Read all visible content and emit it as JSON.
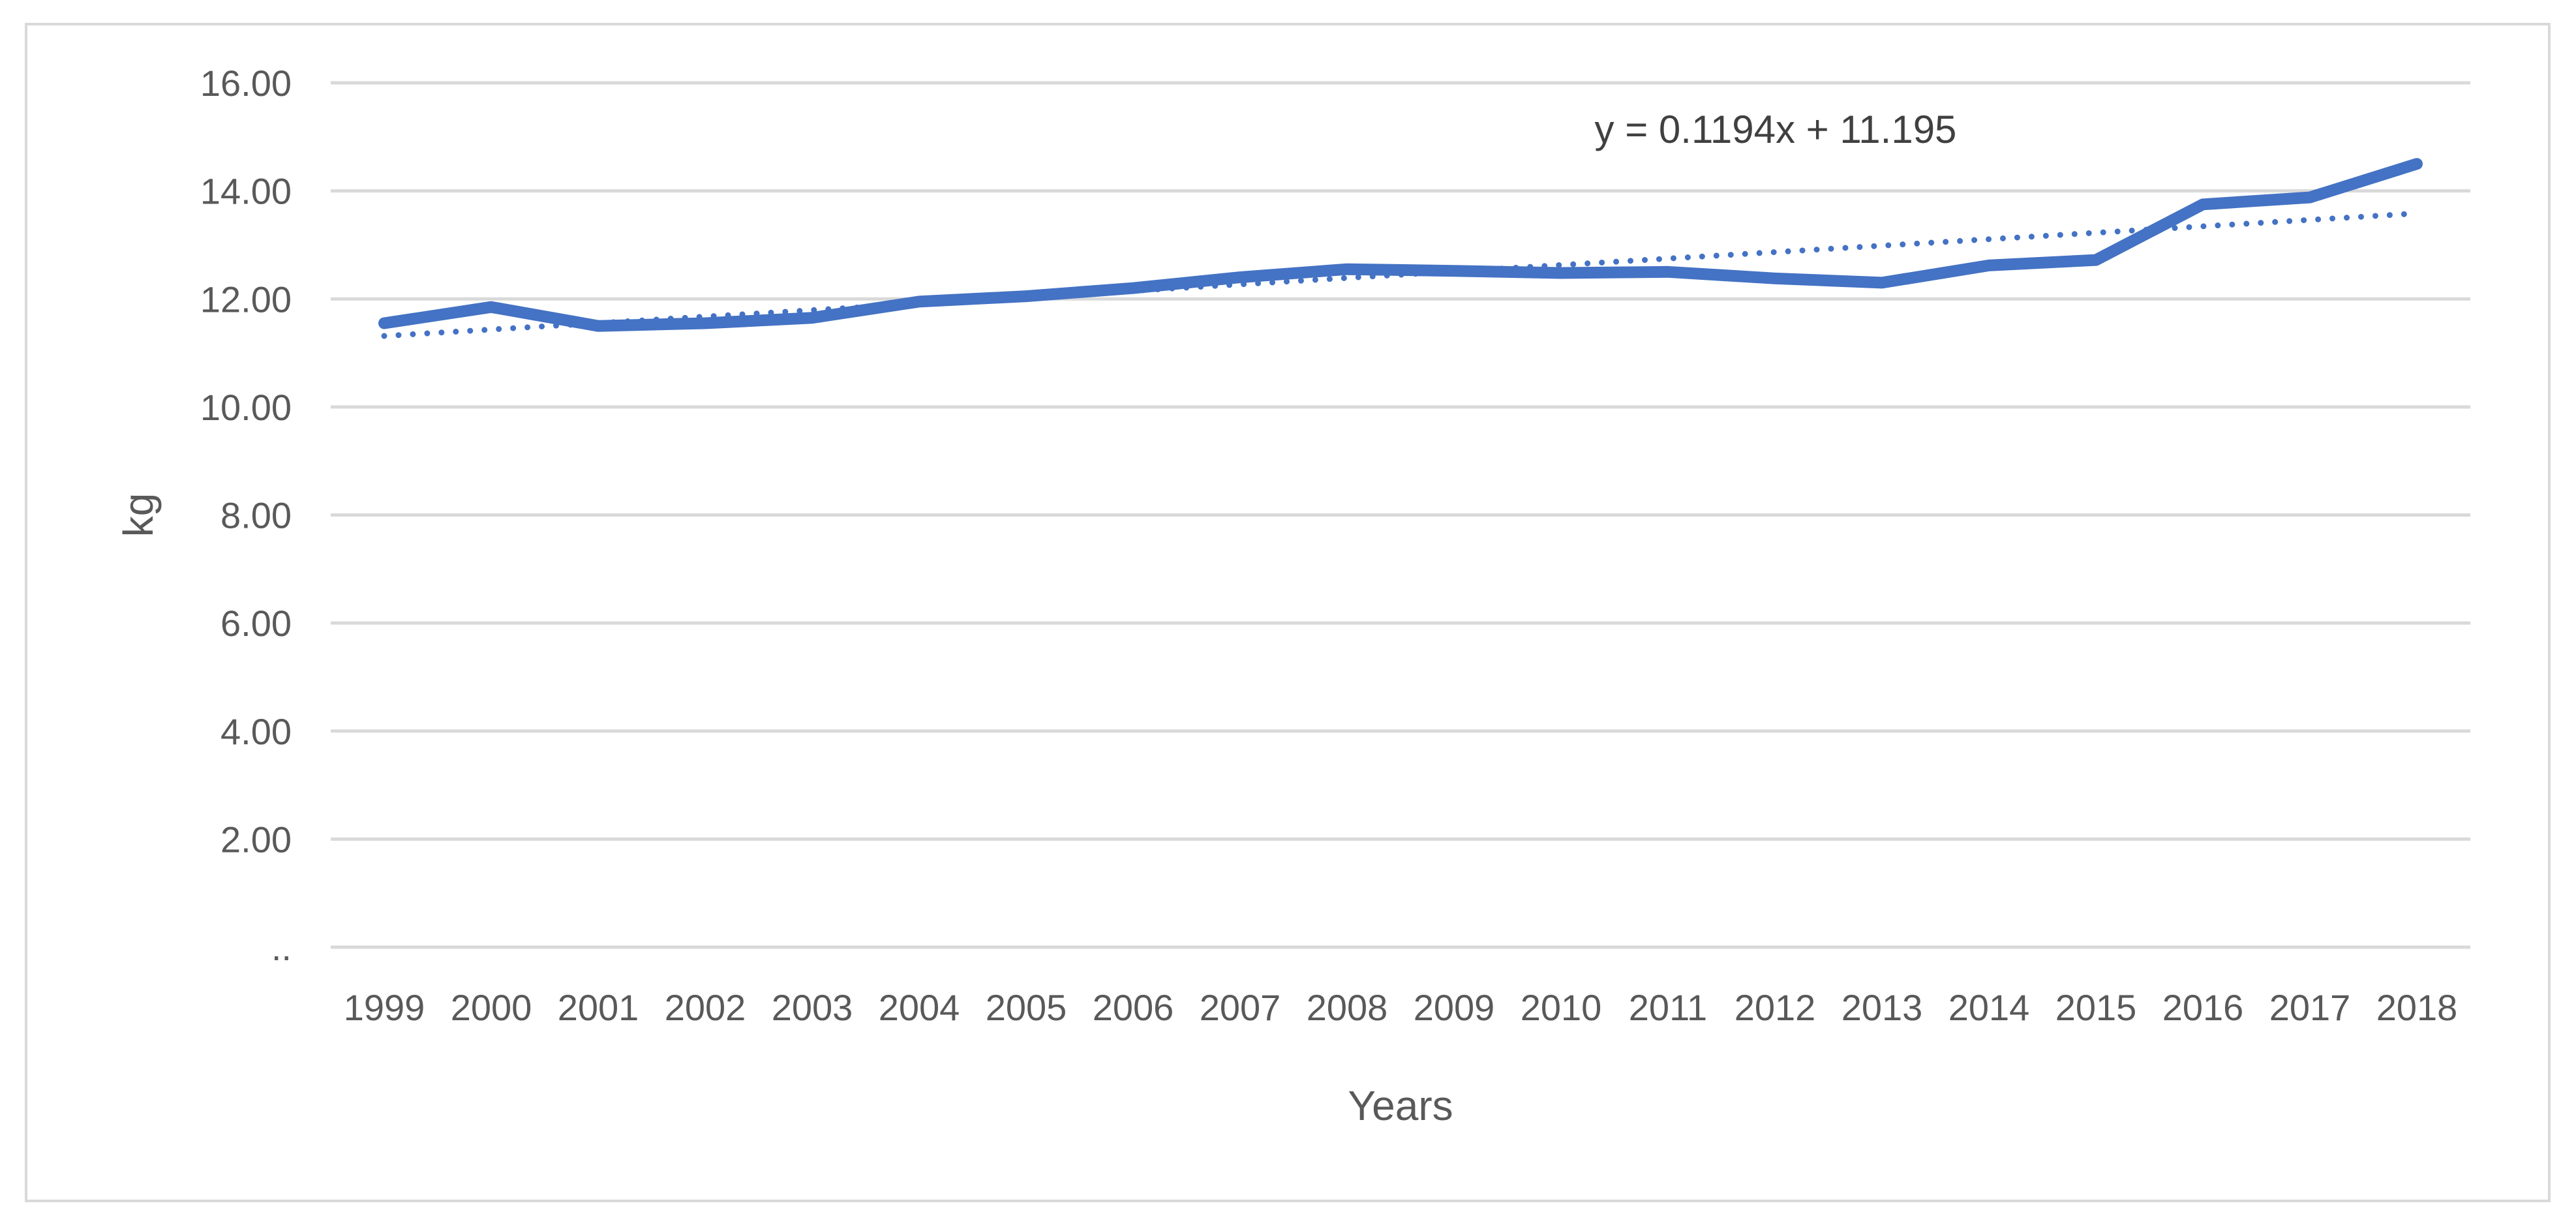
{
  "chart_data": {
    "type": "line",
    "title": "",
    "xlabel": "Years",
    "ylabel": "kg",
    "x": [
      "1999",
      "2000",
      "2001",
      "2002",
      "2003",
      "2004",
      "2005",
      "2006",
      "2007",
      "2008",
      "2009",
      "2010",
      "2011",
      "2012",
      "2013",
      "2014",
      "2015",
      "2016",
      "2017",
      "2018"
    ],
    "ylim": [
      0,
      16
    ],
    "yticks": [
      0,
      2,
      4,
      6,
      8,
      10,
      12,
      14,
      16
    ],
    "ytick_labels": [
      "..",
      "2.00",
      "4.00",
      "6.00",
      "8.00",
      "10.00",
      "12.00",
      "14.00",
      "16.00"
    ],
    "grid": true,
    "legend": "none",
    "series": [
      {
        "values": [
          11.55,
          11.85,
          11.5,
          11.55,
          11.65,
          11.95,
          12.05,
          12.2,
          12.4,
          12.55,
          12.52,
          12.48,
          12.5,
          12.38,
          12.3,
          12.62,
          12.72,
          13.75,
          13.88,
          14.5
        ],
        "color": "#4472c4",
        "style": "solid"
      }
    ],
    "trendline": {
      "type": "linear",
      "slope": 0.1194,
      "intercept": 11.195,
      "equation_label": "y = 0.1194x + 11.195",
      "color": "#4472c4",
      "style": "dotted"
    }
  }
}
